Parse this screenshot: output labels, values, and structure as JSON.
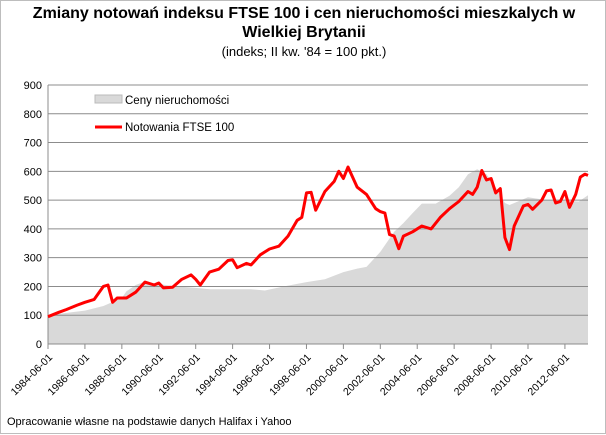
{
  "chart_data": {
    "type": "line",
    "title_line1": "Zmiany notowań indeksu FTSE 100 i cen nieruchomości mieszkalych w",
    "title_line2": "Wielkiej Brytanii",
    "subtitle": "(indeks; II kw. '84 = 100 pkt.)",
    "source_note": "Opracowanie własne na podstawie danych Halifax i Yahoo",
    "ylim": [
      0,
      900
    ],
    "yticks": [
      "0",
      "100",
      "200",
      "300",
      "400",
      "500",
      "600",
      "700",
      "800",
      "900"
    ],
    "xlim": [
      "1984-06-01",
      "2013-09-01"
    ],
    "xticks": [
      "1984-06-01",
      "1986-06-01",
      "1988-06-01",
      "1990-06-01",
      "1992-06-01",
      "1994-06-01",
      "1996-06-01",
      "1998-06-01",
      "2000-06-01",
      "2002-06-01",
      "2004-06-01",
      "2006-06-01",
      "2008-06-01",
      "2010-06-01",
      "2012-06-01"
    ],
    "grid": true,
    "legend_placement": "top-left",
    "series": [
      {
        "name": "Ceny nieruchomości",
        "style": "area",
        "color": "#d9d9d9",
        "points": [
          [
            "1984-06-01",
            100
          ],
          [
            "1985-06-01",
            108
          ],
          [
            "1986-06-01",
            116
          ],
          [
            "1987-06-01",
            132
          ],
          [
            "1988-06-01",
            160
          ],
          [
            "1988-09-01",
            183
          ],
          [
            "1989-03-01",
            205
          ],
          [
            "1989-09-01",
            217
          ],
          [
            "1990-06-01",
            208
          ],
          [
            "1991-06-01",
            200
          ],
          [
            "1992-06-01",
            195
          ],
          [
            "1993-03-01",
            190
          ],
          [
            "1994-06-01",
            190
          ],
          [
            "1995-06-01",
            190
          ],
          [
            "1996-03-01",
            186
          ],
          [
            "1996-09-01",
            193
          ],
          [
            "1997-06-01",
            203
          ],
          [
            "1998-06-01",
            215
          ],
          [
            "1999-06-01",
            225
          ],
          [
            "2000-06-01",
            250
          ],
          [
            "2001-03-01",
            262
          ],
          [
            "2001-09-01",
            268
          ],
          [
            "2002-06-01",
            320
          ],
          [
            "2003-03-01",
            390
          ],
          [
            "2003-09-01",
            420
          ],
          [
            "2004-03-01",
            455
          ],
          [
            "2004-09-01",
            488
          ],
          [
            "2005-06-01",
            488
          ],
          [
            "2006-03-01",
            515
          ],
          [
            "2006-09-01",
            545
          ],
          [
            "2007-03-01",
            590
          ],
          [
            "2007-09-01",
            607
          ],
          [
            "2008-03-01",
            590
          ],
          [
            "2008-09-01",
            545
          ],
          [
            "2009-03-01",
            490
          ],
          [
            "2009-06-01",
            483
          ],
          [
            "2010-06-01",
            510
          ],
          [
            "2011-06-01",
            500
          ],
          [
            "2012-06-01",
            498
          ],
          [
            "2013-03-01",
            495
          ],
          [
            "2013-09-01",
            517
          ]
        ]
      },
      {
        "name": "Notowania FTSE 100",
        "style": "line",
        "color": "#ff0000",
        "points": [
          [
            "1984-06-01",
            95
          ],
          [
            "1985-01-01",
            110
          ],
          [
            "1985-06-01",
            120
          ],
          [
            "1986-01-01",
            135
          ],
          [
            "1986-06-01",
            145
          ],
          [
            "1986-12-01",
            155
          ],
          [
            "1987-06-01",
            200
          ],
          [
            "1987-09-01",
            205
          ],
          [
            "1987-12-01",
            145
          ],
          [
            "1988-03-01",
            160
          ],
          [
            "1988-09-01",
            160
          ],
          [
            "1989-03-01",
            180
          ],
          [
            "1989-09-01",
            215
          ],
          [
            "1990-03-01",
            205
          ],
          [
            "1990-06-01",
            212
          ],
          [
            "1990-09-01",
            195
          ],
          [
            "1991-03-01",
            197
          ],
          [
            "1991-09-01",
            225
          ],
          [
            "1992-03-01",
            240
          ],
          [
            "1992-06-01",
            225
          ],
          [
            "1992-09-01",
            205
          ],
          [
            "1993-03-01",
            250
          ],
          [
            "1993-09-01",
            260
          ],
          [
            "1994-03-01",
            290
          ],
          [
            "1994-06-01",
            293
          ],
          [
            "1994-09-01",
            265
          ],
          [
            "1995-03-01",
            280
          ],
          [
            "1995-06-01",
            275
          ],
          [
            "1995-12-01",
            310
          ],
          [
            "1996-06-01",
            330
          ],
          [
            "1996-12-01",
            340
          ],
          [
            "1997-06-01",
            375
          ],
          [
            "1997-12-01",
            430
          ],
          [
            "1998-03-01",
            440
          ],
          [
            "1998-06-01",
            525
          ],
          [
            "1998-09-01",
            527
          ],
          [
            "1998-12-01",
            465
          ],
          [
            "1999-06-01",
            530
          ],
          [
            "1999-12-01",
            565
          ],
          [
            "2000-03-01",
            600
          ],
          [
            "2000-06-01",
            575
          ],
          [
            "2000-09-01",
            615
          ],
          [
            "2001-03-01",
            545
          ],
          [
            "2001-09-01",
            520
          ],
          [
            "2002-03-01",
            470
          ],
          [
            "2002-06-01",
            460
          ],
          [
            "2002-09-01",
            455
          ],
          [
            "2002-12-01",
            380
          ],
          [
            "2003-03-01",
            375
          ],
          [
            "2003-06-01",
            331
          ],
          [
            "2003-09-01",
            375
          ],
          [
            "2004-03-01",
            390
          ],
          [
            "2004-09-01",
            410
          ],
          [
            "2005-03-01",
            400
          ],
          [
            "2005-09-01",
            440
          ],
          [
            "2006-03-01",
            470
          ],
          [
            "2006-09-01",
            495
          ],
          [
            "2007-03-01",
            530
          ],
          [
            "2007-06-01",
            520
          ],
          [
            "2007-09-01",
            545
          ],
          [
            "2007-12-01",
            603
          ],
          [
            "2008-03-01",
            570
          ],
          [
            "2008-06-01",
            575
          ],
          [
            "2008-09-01",
            525
          ],
          [
            "2008-12-01",
            540
          ],
          [
            "2009-03-01",
            370
          ],
          [
            "2009-06-01",
            328
          ],
          [
            "2009-09-01",
            410
          ],
          [
            "2010-03-01",
            480
          ],
          [
            "2010-06-01",
            485
          ],
          [
            "2010-09-01",
            468
          ],
          [
            "2011-03-01",
            500
          ],
          [
            "2011-06-01",
            532
          ],
          [
            "2011-09-01",
            535
          ],
          [
            "2011-12-01",
            490
          ],
          [
            "2012-03-01",
            495
          ],
          [
            "2012-06-01",
            530
          ],
          [
            "2012-09-01",
            475
          ],
          [
            "2013-01-01",
            520
          ],
          [
            "2013-04-01",
            580
          ],
          [
            "2013-07-01",
            590
          ],
          [
            "2013-09-01",
            586
          ]
        ]
      }
    ]
  }
}
